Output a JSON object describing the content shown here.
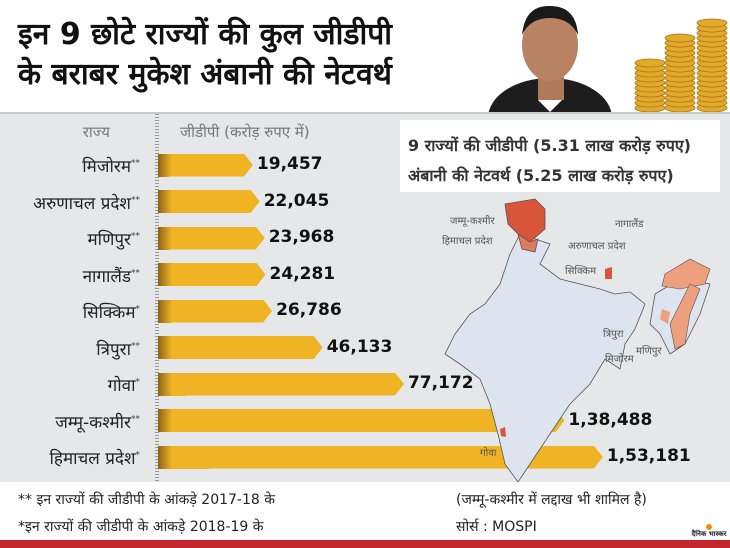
{
  "title": {
    "line1": "इन 9 छोटे राज्यों की कुल जीडीपी",
    "line2": "के बराबर मुकेश अंबानी की नेटवर्थ"
  },
  "legend": {
    "line1": "9 राज्यों की जीडीपी (5.31 लाख करोड़ रुपए)",
    "line2": "अंबानी की नेटवर्थ (5.25 लाख करोड़ रुपए)"
  },
  "chart_data": {
    "type": "bar",
    "orientation": "horizontal",
    "xlabel": "जीडीपी (करोड़ रुपए में)",
    "ylabel": "राज्य",
    "categories": [
      "मिजोरम",
      "अरुणाचल प्रदेश",
      "मणिपुर",
      "नागालैंड",
      "सिक्किम",
      "त्रिपुरा",
      "गोवा",
      "जम्मू-कश्मीर",
      "हिमाचल प्रदेश"
    ],
    "markers": [
      "**",
      "**",
      "**",
      "**",
      "*",
      "**",
      "*",
      "**",
      "*"
    ],
    "values": [
      19457,
      22045,
      23968,
      24281,
      26786,
      46133,
      77172,
      138488,
      153181
    ],
    "labels": [
      "19,457",
      "22,045",
      "23,968",
      "24,281",
      "26,786",
      "46,133",
      "77,172",
      "1,38,488",
      "1,53,181"
    ],
    "bar_color": "#f0b323"
  },
  "map": {
    "labels": [
      "जम्मू-कश्मीर",
      "हिमाचल प्रदेश",
      "नागालैंड",
      "अरुणाचल प्रदेश",
      "सिक्किम",
      "त्रिपुरा",
      "मणिपुर",
      "मिजोरम",
      "गोवा"
    ],
    "highlight_color": "#d9553a",
    "base_color": "#dde4f0"
  },
  "footer": {
    "note1": "** इन राज्यों की जीडीपी के आंकड़े 2017-18 के",
    "note2": "*इन राज्यों की जीडीपी के आंकड़े 2018-19 के",
    "note3": "(जम्मू-कश्मीर में लद्दाख भी शामिल है)",
    "source": "सोर्स : MOSPI",
    "logo": "दैनिक भास्कर"
  }
}
